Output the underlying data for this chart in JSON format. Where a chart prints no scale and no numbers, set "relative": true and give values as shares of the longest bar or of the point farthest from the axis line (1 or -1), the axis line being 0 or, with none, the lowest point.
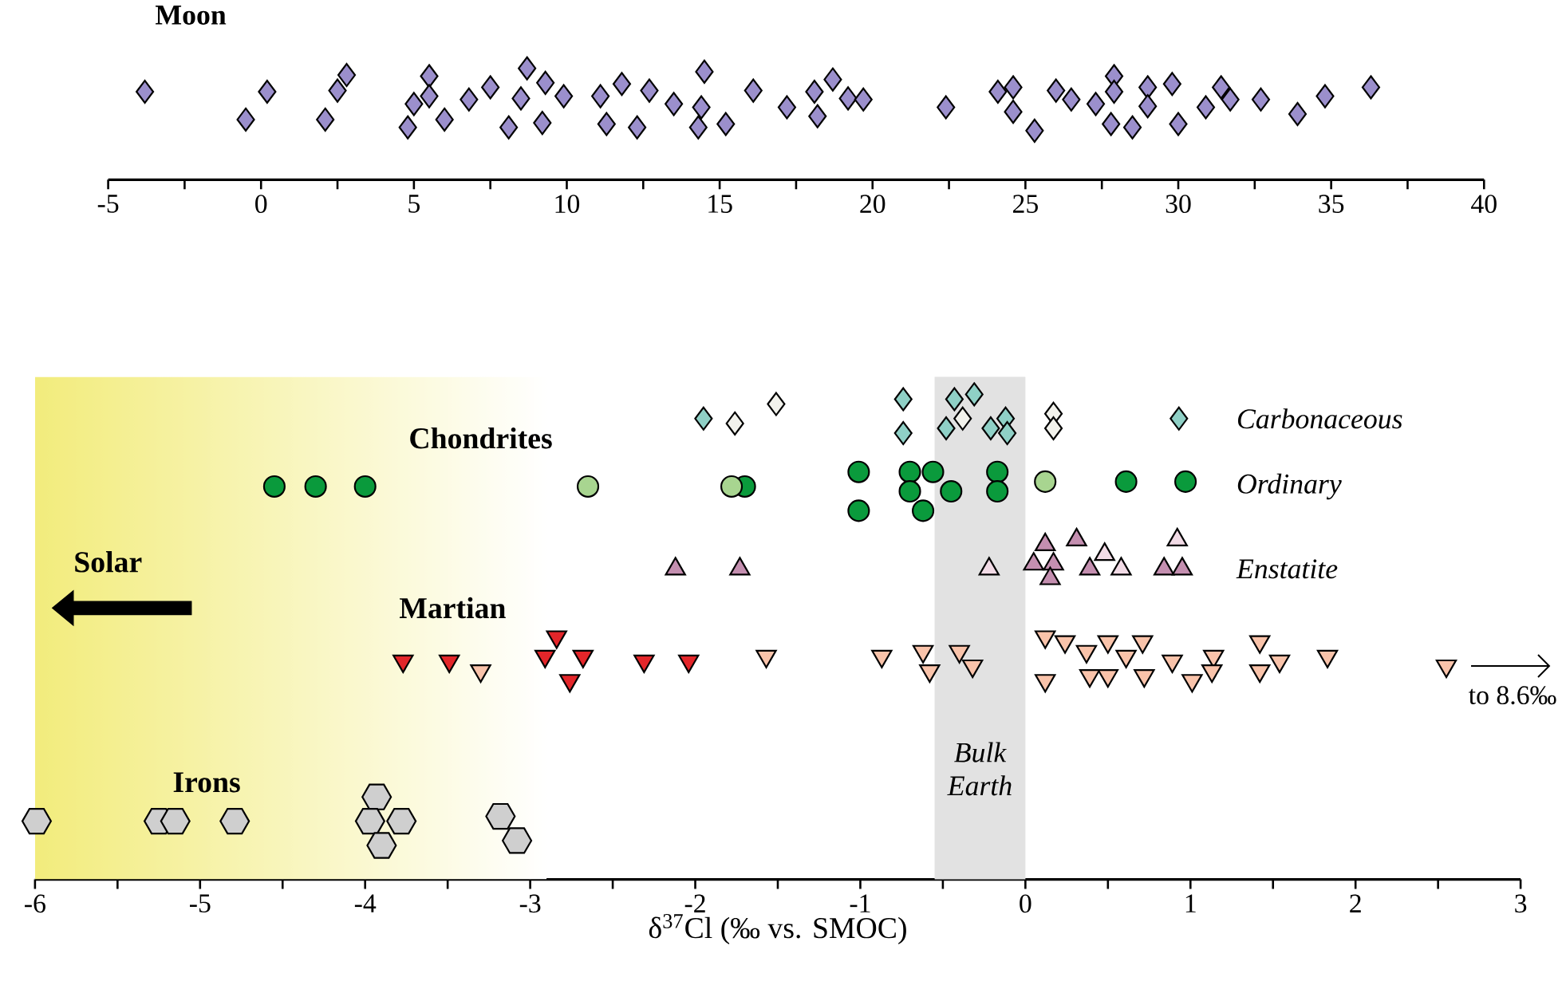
{
  "chart_data": [
    {
      "type": "scatter",
      "title": "Moon",
      "relative": true,
      "marker": "diamond",
      "xlim": [
        -5,
        40
      ],
      "xticks": [
        -5,
        0,
        5,
        10,
        15,
        20,
        25,
        30,
        35,
        40
      ],
      "series": [
        {
          "color": "#9b8fcc",
          "x": [
            -3.8,
            0.2,
            -0.5,
            2.8,
            2.5,
            2.1,
            5.5,
            5.0,
            4.8,
            5.5,
            6.0,
            6.8,
            7.5,
            8.7,
            8.1,
            8.5,
            9.3,
            9.2,
            9.9,
            11.1,
            11.8,
            11.3,
            12.3,
            12.7,
            13.5,
            14.5,
            14.4,
            14.3,
            15.2,
            16.1,
            17.2,
            18.7,
            18.1,
            19.2,
            18.2,
            19.7,
            22.4,
            24.1,
            24.6,
            24.6,
            25.3,
            26.0,
            26.5,
            27.3,
            27.9,
            27.8,
            27.9,
            28.5,
            29.0,
            29.0,
            29.8,
            30.0,
            30.9,
            31.4,
            31.7,
            32.7,
            33.9,
            34.8,
            36.3
          ],
          "values": [
            0.79,
            0.79,
            0.54,
            0.94,
            0.8,
            0.54,
            0.93,
            0.68,
            0.47,
            0.75,
            0.54,
            0.72,
            0.83,
            1.0,
            0.47,
            0.73,
            0.87,
            0.51,
            0.75,
            0.75,
            0.86,
            0.5,
            0.47,
            0.8,
            0.68,
            0.97,
            0.65,
            0.47,
            0.5,
            0.8,
            0.65,
            0.9,
            0.79,
            0.73,
            0.57,
            0.72,
            0.65,
            0.79,
            0.83,
            0.61,
            0.44,
            0.8,
            0.72,
            0.68,
            0.93,
            0.5,
            0.79,
            0.47,
            0.83,
            0.66,
            0.86,
            0.5,
            0.65,
            0.83,
            0.72,
            0.72,
            0.59,
            0.75,
            0.83
          ]
        }
      ]
    },
    {
      "type": "scatter",
      "xlabel": "δ$^{37}$Cl (‰ vs. SMOC)",
      "relative": true,
      "legend": "right",
      "xlim": [
        -6,
        3
      ],
      "xticks": [
        -6,
        -5,
        -4,
        -3,
        -2,
        -1,
        0,
        1,
        2,
        3
      ],
      "annotations": [
        "Chondrites",
        "Martian",
        "Irons",
        {
          "text": "to 8.6‰",
          "x": 2.55,
          "y": 0.44
        }
      ],
      "bands": [
        {
          "axis": "x",
          "from": -6,
          "to": -2.9,
          "label": "Solar",
          "color": "#f2ec7c"
        },
        {
          "axis": "x",
          "from": -0.55,
          "to": 0,
          "label": "Bulk Earth",
          "color": "#e2e2e2"
        }
      ],
      "series": [
        {
          "name": "Carbonaceous",
          "color": "#8fd0c6",
          "marker": "diamond",
          "x": [
            -1.95,
            -0.74,
            -0.74,
            -0.43,
            -0.31,
            -0.48,
            -0.12,
            -0.11,
            -0.21
          ],
          "values": [
            0.95,
            0.99,
            0.92,
            0.99,
            1.0,
            0.93,
            0.95,
            0.92,
            0.93
          ]
        },
        {
          "color": "#f2f2ec",
          "marker": "diamond",
          "x": [
            -1.76,
            -1.51,
            -0.38,
            0.17,
            0.17
          ],
          "values": [
            0.94,
            0.98,
            0.95,
            0.96,
            0.93
          ]
        },
        {
          "name": "Ordinary",
          "color": "#0a9a3c",
          "marker": "circle",
          "x": [
            -4.55,
            -4.3,
            -4.0,
            -1.7,
            -1.01,
            -1.01,
            -0.7,
            -0.56,
            -0.7,
            -0.62,
            -0.45,
            -0.17,
            -0.17,
            0.61,
            0.97
          ],
          "values": [
            0.81,
            0.81,
            0.81,
            0.81,
            0.84,
            0.76,
            0.84,
            0.84,
            0.8,
            0.76,
            0.8,
            0.84,
            0.8,
            0.82,
            0.82
          ]
        },
        {
          "color": "#a8d590",
          "marker": "circle",
          "x": [
            -2.65,
            -1.78,
            0.12
          ],
          "values": [
            0.81,
            0.81,
            0.82
          ]
        },
        {
          "name": "Enstatite",
          "color": "#c48fb0",
          "marker": "triangle",
          "x": [
            -2.12,
            -1.73,
            0.12,
            0.05,
            0.17,
            0.15,
            0.31,
            0.39,
            0.84,
            0.95
          ],
          "values": [
            0.64,
            0.64,
            0.69,
            0.65,
            0.65,
            0.62,
            0.7,
            0.64,
            0.64,
            0.64
          ]
        },
        {
          "color": "#f2dbe6",
          "marker": "triangle",
          "x": [
            -0.22,
            0.48,
            0.58,
            0.92
          ],
          "values": [
            0.64,
            0.67,
            0.64,
            0.7
          ]
        },
        {
          "color": "#e3262a",
          "marker": "triangle-down",
          "x": [
            -3.77,
            -3.49,
            -2.84,
            -2.91,
            -2.68,
            -2.76,
            -2.31,
            -2.04
          ],
          "values": [
            0.45,
            0.45,
            0.5,
            0.46,
            0.46,
            0.41,
            0.45,
            0.45
          ]
        },
        {
          "color": "#f9c3aa",
          "marker": "triangle-down",
          "x": [
            -3.3,
            -1.57,
            -0.87,
            -0.62,
            -0.58,
            -0.4,
            -0.32,
            0.12,
            0.12,
            0.24,
            0.37,
            0.39,
            0.5,
            0.5,
            0.61,
            0.71,
            0.72,
            0.89,
            1.01,
            1.14,
            1.13,
            1.42,
            1.54,
            1.42,
            1.83,
            2.55
          ],
          "values": [
            0.43,
            0.46,
            0.46,
            0.47,
            0.43,
            0.47,
            0.44,
            0.5,
            0.41,
            0.49,
            0.47,
            0.42,
            0.49,
            0.42,
            0.46,
            0.49,
            0.42,
            0.45,
            0.41,
            0.46,
            0.43,
            0.49,
            0.45,
            0.43,
            0.46,
            0.44
          ]
        },
        {
          "color": "#cfcfcf",
          "x": [
            -5.99,
            -5.25,
            -5.15,
            -4.79,
            -3.93,
            -3.97,
            -3.78,
            -3.9,
            -3.18,
            -3.08
          ],
          "values": [
            0.12,
            0.12,
            0.12,
            0.12,
            0.17,
            0.12,
            0.12,
            0.07,
            0.13,
            0.08
          ]
        }
      ]
    }
  ]
}
